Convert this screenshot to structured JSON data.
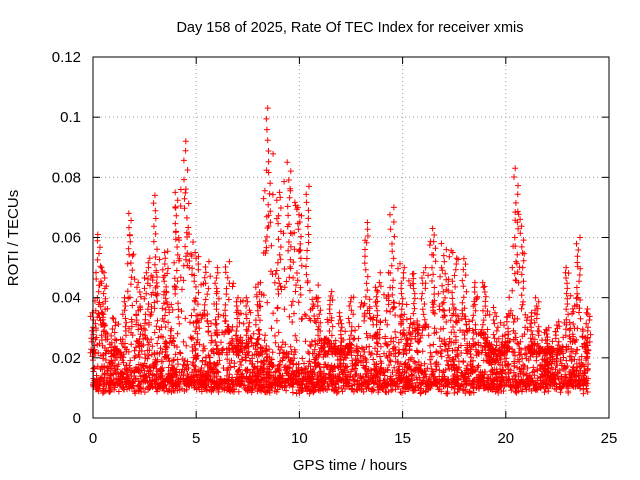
{
  "chart_data": {
    "type": "scatter",
    "title": "Day 158 of 2025, Rate Of TEC Index for receiver xmis",
    "xlabel": "GPS time / hours",
    "ylabel": "ROTI / TECUs",
    "xlim": [
      0,
      25
    ],
    "ylim": [
      0,
      0.12
    ],
    "xticks": [
      0,
      5,
      10,
      15,
      20,
      25
    ],
    "xtick_labels": [
      "0",
      "5",
      "10",
      "15",
      "20",
      "25"
    ],
    "yticks": [
      0,
      0.02,
      0.04,
      0.06,
      0.08,
      0.1,
      0.12
    ],
    "ytick_labels": [
      "0",
      "0.02",
      "0.04",
      "0.06",
      "0.08",
      "0.1",
      "0.12"
    ],
    "grid": true,
    "legend": "none",
    "marker": "plus",
    "color": "#ff0000",
    "x_data_range": [
      0,
      24
    ],
    "envelope": [
      {
        "x": 0.0,
        "max": 0.035
      },
      {
        "x": 0.25,
        "max": 0.061
      },
      {
        "x": 0.5,
        "max": 0.05
      },
      {
        "x": 1.0,
        "max": 0.033
      },
      {
        "x": 1.5,
        "max": 0.04
      },
      {
        "x": 1.8,
        "max": 0.068
      },
      {
        "x": 2.2,
        "max": 0.045
      },
      {
        "x": 2.6,
        "max": 0.05
      },
      {
        "x": 3.0,
        "max": 0.074
      },
      {
        "x": 3.5,
        "max": 0.055
      },
      {
        "x": 4.0,
        "max": 0.075
      },
      {
        "x": 4.5,
        "max": 0.092
      },
      {
        "x": 5.0,
        "max": 0.055
      },
      {
        "x": 5.5,
        "max": 0.052
      },
      {
        "x": 6.0,
        "max": 0.05
      },
      {
        "x": 6.5,
        "max": 0.052
      },
      {
        "x": 7.0,
        "max": 0.04
      },
      {
        "x": 7.5,
        "max": 0.04
      },
      {
        "x": 8.0,
        "max": 0.045
      },
      {
        "x": 8.5,
        "max": 0.103
      },
      {
        "x": 9.0,
        "max": 0.075
      },
      {
        "x": 9.5,
        "max": 0.085
      },
      {
        "x": 10.0,
        "max": 0.07
      },
      {
        "x": 10.4,
        "max": 0.077
      },
      {
        "x": 11.0,
        "max": 0.04
      },
      {
        "x": 11.5,
        "max": 0.042
      },
      {
        "x": 12.0,
        "max": 0.035
      },
      {
        "x": 12.5,
        "max": 0.04
      },
      {
        "x": 13.2,
        "max": 0.065
      },
      {
        "x": 13.8,
        "max": 0.045
      },
      {
        "x": 14.5,
        "max": 0.07
      },
      {
        "x": 15.0,
        "max": 0.05
      },
      {
        "x": 15.5,
        "max": 0.048
      },
      {
        "x": 16.0,
        "max": 0.05
      },
      {
        "x": 16.5,
        "max": 0.063
      },
      {
        "x": 17.0,
        "max": 0.058
      },
      {
        "x": 17.5,
        "max": 0.055
      },
      {
        "x": 18.0,
        "max": 0.053
      },
      {
        "x": 18.5,
        "max": 0.045
      },
      {
        "x": 19.0,
        "max": 0.045
      },
      {
        "x": 19.5,
        "max": 0.035
      },
      {
        "x": 20.0,
        "max": 0.032
      },
      {
        "x": 20.5,
        "max": 0.083
      },
      {
        "x": 20.8,
        "max": 0.066
      },
      {
        "x": 21.2,
        "max": 0.035
      },
      {
        "x": 21.5,
        "max": 0.04
      },
      {
        "x": 22.0,
        "max": 0.03
      },
      {
        "x": 22.5,
        "max": 0.032
      },
      {
        "x": 23.0,
        "max": 0.05
      },
      {
        "x": 23.5,
        "max": 0.06
      },
      {
        "x": 24.0,
        "max": 0.035
      }
    ],
    "typical_band": [
      0.008,
      0.025
    ]
  }
}
